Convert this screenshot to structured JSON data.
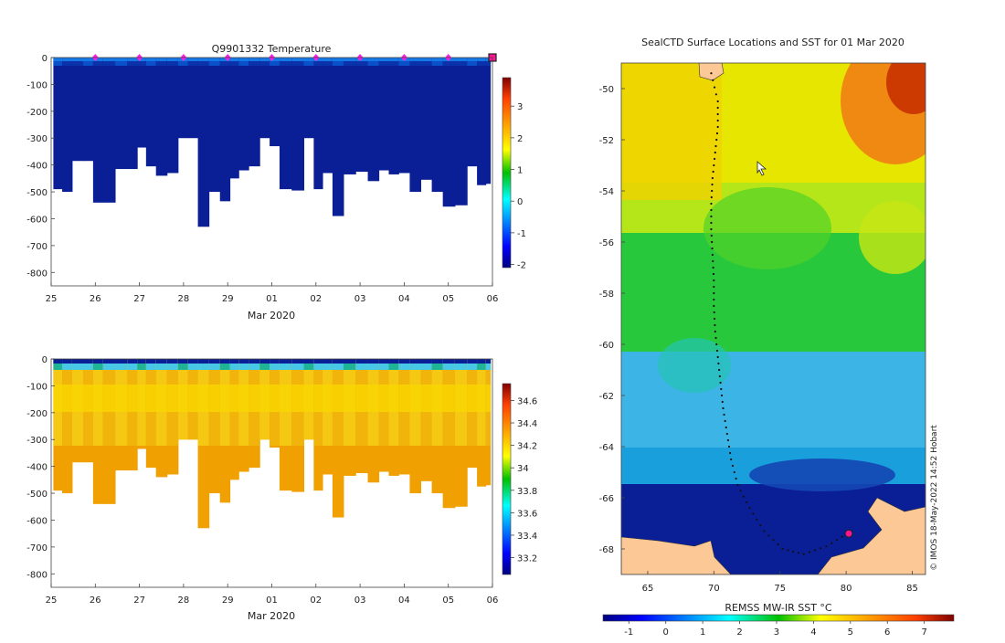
{
  "panels": {
    "temperature": {
      "title": "Q9901332  Temperature",
      "xlabel": "Mar 2020",
      "x_ticks": [
        "25",
        "26",
        "27",
        "28",
        "29",
        "01",
        "02",
        "03",
        "04",
        "05",
        "06"
      ],
      "y_ticks": [
        "0",
        "-100",
        "-200",
        "-300",
        "-400",
        "-500",
        "-600",
        "-700",
        "-800"
      ],
      "colorbar_ticks": [
        "3",
        "2",
        "1",
        "0",
        "-1",
        "-2"
      ]
    },
    "salinity": {
      "title": "",
      "xlabel": "Mar 2020",
      "x_ticks": [
        "25",
        "26",
        "27",
        "28",
        "29",
        "01",
        "02",
        "03",
        "04",
        "05",
        "06"
      ],
      "y_ticks": [
        "0",
        "-100",
        "-200",
        "-300",
        "-400",
        "-500",
        "-600",
        "-700",
        "-800"
      ],
      "colorbar_ticks": [
        "34.6",
        "34.4",
        "34.2",
        "34",
        "33.8",
        "33.6",
        "33.4",
        "33.2"
      ]
    },
    "map": {
      "title": "SealCTD Surface Locations and SST for 01 Mar 2020",
      "x_ticks": [
        "65",
        "70",
        "75",
        "80",
        "85"
      ],
      "y_ticks": [
        "-50",
        "-52",
        "-54",
        "-56",
        "-58",
        "-60",
        "-62",
        "-64",
        "-66",
        "-68"
      ],
      "colorbar_label": "REMSS MW-IR SST °C",
      "colorbar_ticks": [
        "-1",
        "0",
        "1",
        "2",
        "3",
        "4",
        "5",
        "6",
        "7"
      ],
      "credit": "© IMOS 18-May-2022 14:52 Hobart"
    }
  },
  "chart_data": [
    {
      "type": "heatmap",
      "title": "Q9901332  Temperature",
      "xlabel": "Mar 2020",
      "ylabel": "",
      "xlim": [
        25.0,
        35.0
      ],
      "ylim": [
        -850,
        0
      ],
      "x_tick_labels": [
        "25",
        "26",
        "27",
        "28",
        "29",
        "01",
        "02",
        "03",
        "04",
        "05",
        "06"
      ],
      "profile_days": [
        25.15,
        25.35,
        25.6,
        25.85,
        26.05,
        26.3,
        26.6,
        26.85,
        27.05,
        27.25,
        27.5,
        27.75,
        28.0,
        28.2,
        28.45,
        28.7,
        28.95,
        29.15,
        29.35,
        29.6,
        29.85,
        30.05,
        30.3,
        30.6,
        30.85,
        31.05,
        31.25,
        31.5,
        31.75,
        32.05,
        32.3,
        32.55,
        32.75,
        33.0,
        33.25,
        33.5,
        33.75,
        34.0,
        34.3,
        34.55,
        34.75,
        34.95
      ],
      "max_depth_m": [
        490,
        500,
        385,
        385,
        540,
        540,
        415,
        415,
        335,
        405,
        440,
        430,
        300,
        300,
        630,
        500,
        535,
        450,
        420,
        405,
        300,
        330,
        490,
        495,
        300,
        490,
        430,
        590,
        435,
        425,
        460,
        420,
        435,
        430,
        500,
        455,
        500,
        555,
        550,
        405,
        475,
        470
      ],
      "surface_markers_days": [
        26,
        27,
        28,
        29,
        30,
        31,
        32,
        33,
        34,
        35
      ],
      "colorbar": {
        "label": "",
        "min": -2.1,
        "max": 3.9,
        "colormap": "jet"
      }
    },
    {
      "type": "heatmap",
      "title": "",
      "xlabel": "Mar 2020",
      "ylabel": "",
      "xlim": [
        25.0,
        35.0
      ],
      "ylim": [
        -850,
        0
      ],
      "x_tick_labels": [
        "25",
        "26",
        "27",
        "28",
        "29",
        "01",
        "02",
        "03",
        "04",
        "05",
        "06"
      ],
      "profile_days": [
        25.15,
        25.35,
        25.6,
        25.85,
        26.05,
        26.3,
        26.6,
        26.85,
        27.05,
        27.25,
        27.5,
        27.75,
        28.0,
        28.2,
        28.45,
        28.7,
        28.95,
        29.15,
        29.35,
        29.6,
        29.85,
        30.05,
        30.3,
        30.6,
        30.85,
        31.05,
        31.25,
        31.5,
        31.75,
        32.05,
        32.3,
        32.55,
        32.75,
        33.0,
        33.25,
        33.5,
        33.75,
        34.0,
        34.3,
        34.55,
        34.75,
        34.95
      ],
      "max_depth_m": [
        490,
        500,
        385,
        385,
        540,
        540,
        415,
        415,
        335,
        405,
        440,
        430,
        300,
        300,
        630,
        500,
        535,
        450,
        420,
        405,
        300,
        330,
        490,
        495,
        300,
        490,
        430,
        590,
        435,
        425,
        460,
        420,
        435,
        430,
        500,
        455,
        500,
        555,
        550,
        405,
        475,
        470
      ],
      "colorbar": {
        "label": "",
        "min": 33.05,
        "max": 34.75,
        "colormap": "jet"
      }
    },
    {
      "type": "heatmap",
      "title": "SealCTD Surface Locations and SST for 01 Mar 2020",
      "xlabel": "",
      "ylabel": "",
      "xlim": [
        63,
        86
      ],
      "ylim": [
        -69,
        -49
      ],
      "colorbar": {
        "label": "REMSS MW-IR SST °C",
        "min": -1.7,
        "max": 7.8,
        "colormap": "jet"
      },
      "track": [
        [
          69.8,
          -49.4
        ],
        [
          70.3,
          -50.5
        ],
        [
          70.3,
          -51.5
        ],
        [
          70.1,
          -52.5
        ],
        [
          69.9,
          -53.5
        ],
        [
          69.8,
          -54.5
        ],
        [
          69.8,
          -55.5
        ],
        [
          69.9,
          -56.5
        ],
        [
          70.0,
          -57.5
        ],
        [
          70.0,
          -58.5
        ],
        [
          70.1,
          -59.5
        ],
        [
          70.3,
          -60.5
        ],
        [
          70.5,
          -61.5
        ],
        [
          70.7,
          -62.5
        ],
        [
          71.0,
          -63.5
        ],
        [
          71.3,
          -64.5
        ],
        [
          71.8,
          -65.5
        ],
        [
          72.7,
          -66.4
        ],
        [
          73.8,
          -67.3
        ],
        [
          75.2,
          -68.0
        ],
        [
          76.8,
          -68.2
        ],
        [
          78.5,
          -67.9
        ],
        [
          80.1,
          -67.4
        ]
      ],
      "current_position": [
        80.2,
        -67.4
      ]
    }
  ]
}
